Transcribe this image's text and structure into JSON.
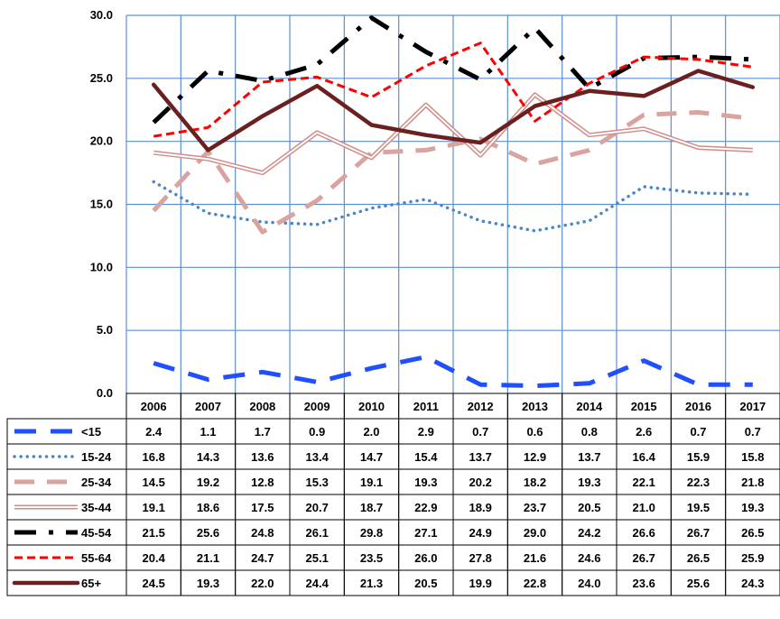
{
  "chart_data": {
    "type": "line",
    "x": [
      "2006",
      "2007",
      "2008",
      "2009",
      "2010",
      "2011",
      "2012",
      "2013",
      "2014",
      "2015",
      "2016",
      "2017"
    ],
    "ylim": [
      0,
      30
    ],
    "yticks": [
      "0.0",
      "5.0",
      "10.0",
      "15.0",
      "20.0",
      "25.0",
      "30.0"
    ],
    "grid": true,
    "legend": "data-table-left",
    "series": [
      {
        "name": "<15",
        "color": "#1f4fff",
        "style": "longdash",
        "values": [
          2.4,
          1.1,
          1.7,
          0.9,
          2.0,
          2.9,
          0.7,
          0.6,
          0.8,
          2.6,
          0.7,
          0.7
        ],
        "labels": [
          "2.4",
          "1.1",
          "1.7",
          "0.9",
          "2.0",
          "2.9",
          "0.7",
          "0.6",
          "0.8",
          "2.6",
          "0.7",
          "0.7"
        ]
      },
      {
        "name": "15-24",
        "color": "#4a86c8",
        "style": "dot",
        "values": [
          16.8,
          14.3,
          13.6,
          13.4,
          14.7,
          15.4,
          13.7,
          12.9,
          13.7,
          16.4,
          15.9,
          15.8
        ],
        "labels": [
          "16.8",
          "14.3",
          "13.6",
          "13.4",
          "14.7",
          "15.4",
          "13.7",
          "12.9",
          "13.7",
          "16.4",
          "15.9",
          "15.8"
        ]
      },
      {
        "name": "25-34",
        "color": "#d9a3a0",
        "style": "dash",
        "values": [
          14.5,
          19.2,
          12.8,
          15.3,
          19.1,
          19.3,
          20.2,
          18.2,
          19.3,
          22.1,
          22.3,
          21.8
        ],
        "labels": [
          "14.5",
          "19.2",
          "12.8",
          "15.3",
          "19.1",
          "19.3",
          "20.2",
          "18.2",
          "19.3",
          "22.1",
          "22.3",
          "21.8"
        ]
      },
      {
        "name": "35-44",
        "color": "#d08c88",
        "style": "double",
        "values": [
          19.1,
          18.6,
          17.5,
          20.7,
          18.7,
          22.9,
          18.9,
          23.7,
          20.5,
          21.0,
          19.5,
          19.3
        ],
        "labels": [
          "19.1",
          "18.6",
          "17.5",
          "20.7",
          "18.7",
          "22.9",
          "18.9",
          "23.7",
          "20.5",
          "21.0",
          "19.5",
          "19.3"
        ]
      },
      {
        "name": "45-54",
        "color": "#000000",
        "style": "longdashdot",
        "values": [
          21.5,
          25.6,
          24.8,
          26.1,
          29.8,
          27.1,
          24.9,
          29.0,
          24.2,
          26.6,
          26.7,
          26.5
        ],
        "labels": [
          "21.5",
          "25.6",
          "24.8",
          "26.1",
          "29.8",
          "27.1",
          "24.9",
          "29.0",
          "24.2",
          "26.6",
          "26.7",
          "26.5"
        ]
      },
      {
        "name": "55-64",
        "color": "#ff0000",
        "style": "shortdash",
        "values": [
          20.4,
          21.1,
          24.7,
          25.1,
          23.5,
          26.0,
          27.8,
          21.6,
          24.6,
          26.7,
          26.5,
          25.9
        ],
        "labels": [
          "20.4",
          "21.1",
          "24.7",
          "25.1",
          "23.5",
          "26.0",
          "27.8",
          "21.6",
          "24.6",
          "26.7",
          "26.5",
          "25.9"
        ]
      },
      {
        "name": "65+",
        "color": "#6b2020",
        "style": "solid",
        "values": [
          24.5,
          19.3,
          22.0,
          24.4,
          21.3,
          20.5,
          19.9,
          22.8,
          24.0,
          23.6,
          25.6,
          24.3
        ],
        "labels": [
          "24.5",
          "19.3",
          "22.0",
          "24.4",
          "21.3",
          "20.5",
          "19.9",
          "22.8",
          "24.0",
          "23.6",
          "25.6",
          "24.3"
        ]
      }
    ]
  }
}
